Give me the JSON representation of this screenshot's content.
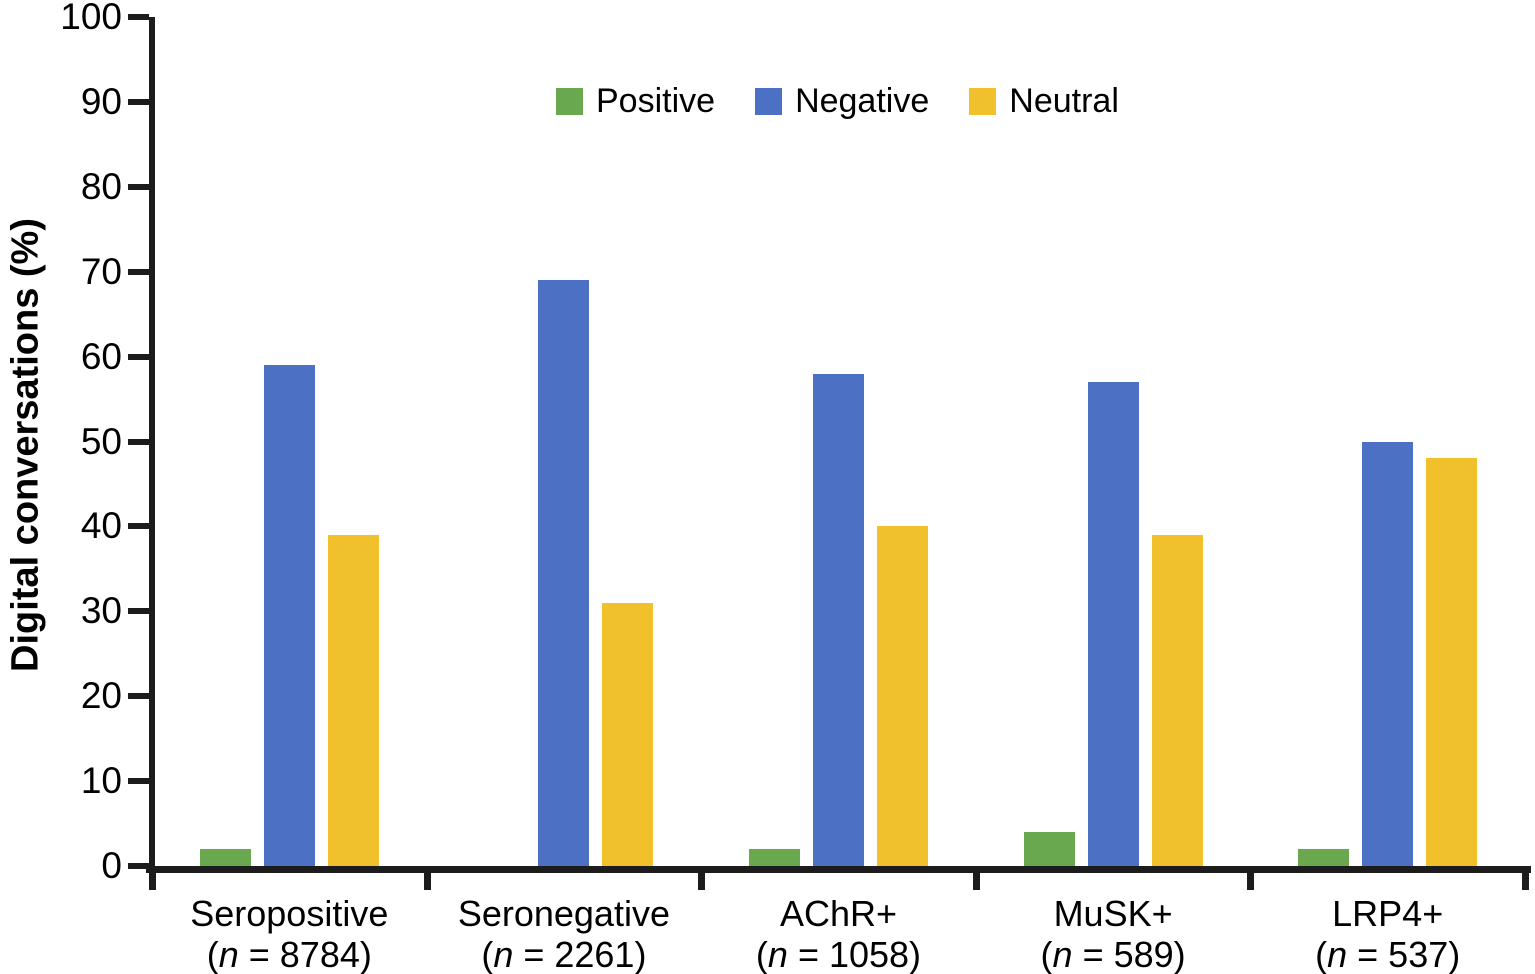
{
  "colors": {
    "axis": "#1c1c1c",
    "text": "#000000",
    "background": "#ffffff",
    "positive_green": "#6AA84F",
    "negative_blue": "#4B70C4",
    "neutral_yellow": "#F1C02D"
  },
  "chart_data": {
    "type": "bar",
    "title": "",
    "xlabel": "",
    "ylabel": "Digital conversations (%)",
    "ylim": [
      0,
      100
    ],
    "yticks": [
      0,
      10,
      20,
      30,
      40,
      50,
      60,
      70,
      80,
      90,
      100
    ],
    "grid": false,
    "legend_position": "top-center",
    "categories": [
      {
        "name": "Seropositive",
        "n": "8784"
      },
      {
        "name": "Seronegative",
        "n": "2261"
      },
      {
        "name": "AChR+",
        "n": "1058"
      },
      {
        "name": "MuSK+",
        "n": "589"
      },
      {
        "name": "LRP4+",
        "n": "537"
      }
    ],
    "n_label": {
      "open": "(",
      "symbol": "n",
      "equals": " = ",
      "close": ")"
    },
    "series": [
      {
        "name": "Positive",
        "color": "#6AA84F",
        "values": [
          2,
          0,
          2,
          4,
          2
        ]
      },
      {
        "name": "Negative",
        "color": "#4B70C4",
        "values": [
          59,
          69,
          58,
          57,
          50
        ]
      },
      {
        "name": "Neutral",
        "color": "#F1C02D",
        "values": [
          39,
          31,
          40,
          39,
          48
        ]
      }
    ]
  }
}
